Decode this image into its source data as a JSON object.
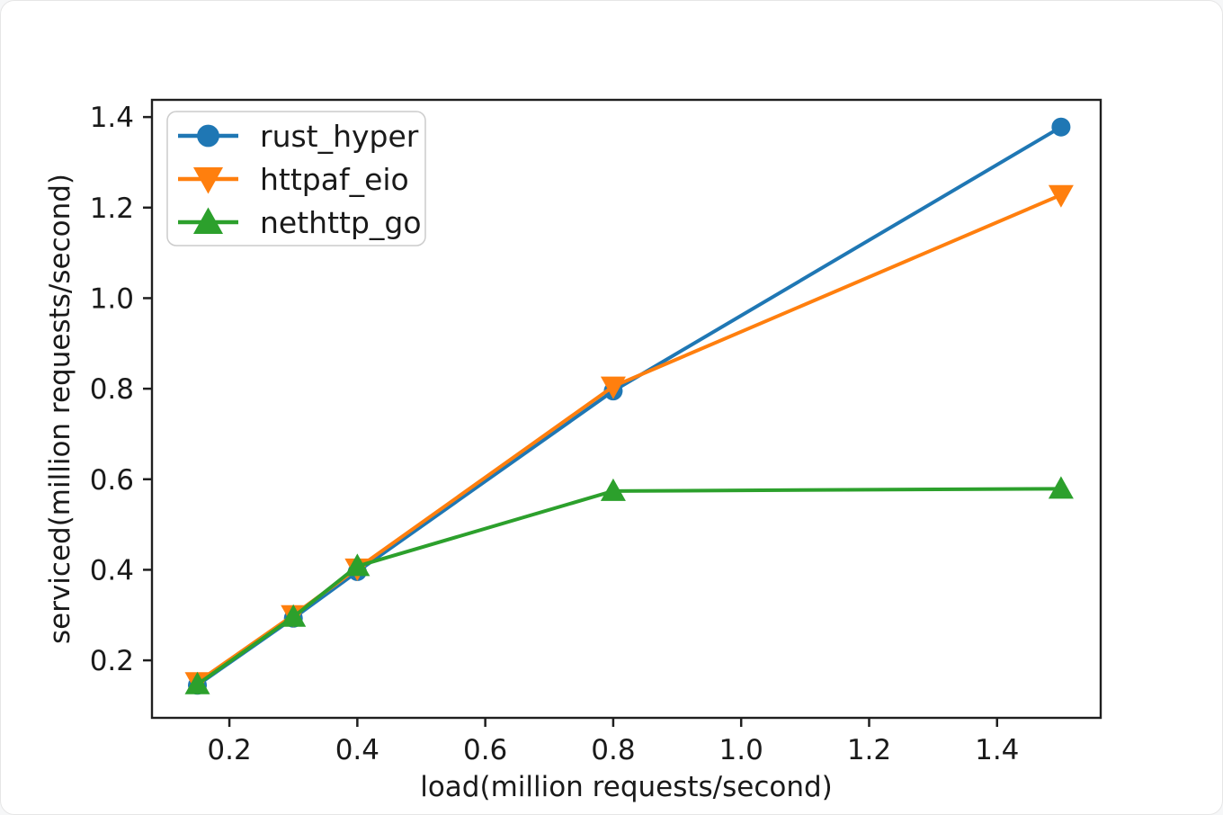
{
  "figure": {
    "background": "#ffffff",
    "border_color": "#e6e6e6"
  },
  "chart_data": {
    "type": "line",
    "title": "",
    "xlabel": "load(million requests/second)",
    "ylabel": "serviced(million requests/second)",
    "x": [
      0.15,
      0.3,
      0.4,
      0.8,
      1.5
    ],
    "series": [
      {
        "name": "rust_hyper",
        "color": "#1f77b4",
        "marker": "circle",
        "values": [
          0.145,
          0.293,
          0.396,
          0.795,
          1.378
        ]
      },
      {
        "name": "httpaf_eio",
        "color": "#ff7f0e",
        "marker": "triangle-down",
        "values": [
          0.152,
          0.3,
          0.403,
          0.805,
          1.228
        ]
      },
      {
        "name": "nethttp_go",
        "color": "#2ca02c",
        "marker": "triangle-up",
        "values": [
          0.147,
          0.296,
          0.408,
          0.574,
          0.579
        ]
      }
    ],
    "xticks": [
      0.2,
      0.4,
      0.6,
      0.8,
      1.0,
      1.2,
      1.4
    ],
    "yticks": [
      0.2,
      0.4,
      0.6,
      0.8,
      1.0,
      1.2,
      1.4
    ],
    "xlim": [
      0.079,
      1.562
    ],
    "ylim": [
      0.073,
      1.438
    ],
    "grid": false,
    "legend": {
      "position": "upper-left",
      "entries": [
        "rust_hyper",
        "httpaf_eio",
        "nethttp_go"
      ]
    }
  },
  "style": {
    "spine_color": "#1f1f1f",
    "tick_color": "#1f1f1f",
    "legend_border_color": "#cccccc",
    "legend_background": "rgba(255,255,255,0.88)"
  }
}
